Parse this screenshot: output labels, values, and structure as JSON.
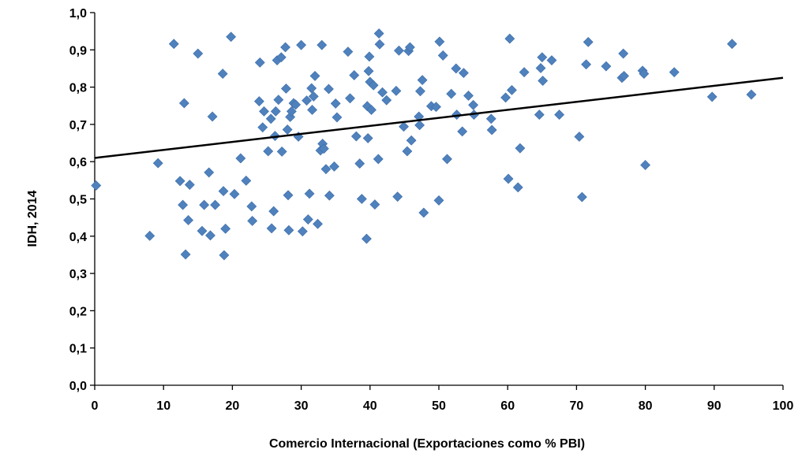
{
  "chart_data": {
    "type": "scatter",
    "xlabel": "Comercio Internacional (Exportaciones como % PBI)",
    "ylabel": "IDH, 2014",
    "xlim": [
      0,
      100
    ],
    "ylim": [
      0,
      1
    ],
    "xticks": [
      "0",
      "10",
      "20",
      "30",
      "40",
      "50",
      "60",
      "70",
      "80",
      "90",
      "100"
    ],
    "yticks": [
      "0,0",
      "0,1",
      "0,2",
      "0,3",
      "0,4",
      "0,5",
      "0,6",
      "0,7",
      "0,8",
      "0,9",
      "1,0"
    ],
    "grid": false,
    "marker_color": "#4F81BD",
    "trendline": {
      "type": "linear",
      "x": [
        0,
        100
      ],
      "y": [
        0.61,
        0.825
      ],
      "color": "#000000"
    },
    "points": [
      [
        0.2,
        0.536
      ],
      [
        8.0,
        0.401
      ],
      [
        9.2,
        0.596
      ],
      [
        11.5,
        0.916
      ],
      [
        12.4,
        0.548
      ],
      [
        12.8,
        0.484
      ],
      [
        13.0,
        0.757
      ],
      [
        13.2,
        0.351
      ],
      [
        13.6,
        0.443
      ],
      [
        13.8,
        0.538
      ],
      [
        15.0,
        0.89
      ],
      [
        15.6,
        0.414
      ],
      [
        15.9,
        0.484
      ],
      [
        16.6,
        0.571
      ],
      [
        16.8,
        0.402
      ],
      [
        17.1,
        0.721
      ],
      [
        17.5,
        0.484
      ],
      [
        18.6,
        0.836
      ],
      [
        18.7,
        0.521
      ],
      [
        18.8,
        0.349
      ],
      [
        19.0,
        0.42
      ],
      [
        19.8,
        0.935
      ],
      [
        20.3,
        0.513
      ],
      [
        21.2,
        0.609
      ],
      [
        22.0,
        0.549
      ],
      [
        22.8,
        0.48
      ],
      [
        22.9,
        0.441
      ],
      [
        23.9,
        0.762
      ],
      [
        24.0,
        0.866
      ],
      [
        24.4,
        0.692
      ],
      [
        24.6,
        0.735
      ],
      [
        25.2,
        0.628
      ],
      [
        25.6,
        0.715
      ],
      [
        25.7,
        0.421
      ],
      [
        26.0,
        0.467
      ],
      [
        26.2,
        0.669
      ],
      [
        26.3,
        0.735
      ],
      [
        26.5,
        0.872
      ],
      [
        26.7,
        0.766
      ],
      [
        27.1,
        0.88
      ],
      [
        27.2,
        0.627
      ],
      [
        27.7,
        0.907
      ],
      [
        27.8,
        0.796
      ],
      [
        28.0,
        0.686
      ],
      [
        28.1,
        0.51
      ],
      [
        28.2,
        0.416
      ],
      [
        28.4,
        0.72
      ],
      [
        28.6,
        0.735
      ],
      [
        28.9,
        0.757
      ],
      [
        29.2,
        0.753
      ],
      [
        29.6,
        0.667
      ],
      [
        30.0,
        0.913
      ],
      [
        30.2,
        0.413
      ],
      [
        30.8,
        0.764
      ],
      [
        31.0,
        0.445
      ],
      [
        31.2,
        0.514
      ],
      [
        31.5,
        0.797
      ],
      [
        31.6,
        0.739
      ],
      [
        31.8,
        0.775
      ],
      [
        32.0,
        0.83
      ],
      [
        32.4,
        0.433
      ],
      [
        32.8,
        0.63
      ],
      [
        33.0,
        0.913
      ],
      [
        33.1,
        0.648
      ],
      [
        33.3,
        0.635
      ],
      [
        33.6,
        0.58
      ],
      [
        34.0,
        0.795
      ],
      [
        34.1,
        0.509
      ],
      [
        34.8,
        0.587
      ],
      [
        35.0,
        0.756
      ],
      [
        35.2,
        0.719
      ],
      [
        36.8,
        0.895
      ],
      [
        37.1,
        0.77
      ],
      [
        37.7,
        0.832
      ],
      [
        38.0,
        0.668
      ],
      [
        38.5,
        0.595
      ],
      [
        38.8,
        0.5
      ],
      [
        39.5,
        0.393
      ],
      [
        39.6,
        0.749
      ],
      [
        39.7,
        0.663
      ],
      [
        39.8,
        0.843
      ],
      [
        39.9,
        0.882
      ],
      [
        40.0,
        0.814
      ],
      [
        40.2,
        0.739
      ],
      [
        40.5,
        0.805
      ],
      [
        40.7,
        0.485
      ],
      [
        41.2,
        0.607
      ],
      [
        41.3,
        0.944
      ],
      [
        41.4,
        0.915
      ],
      [
        41.8,
        0.786
      ],
      [
        42.4,
        0.765
      ],
      [
        43.8,
        0.79
      ],
      [
        44.0,
        0.506
      ],
      [
        44.2,
        0.898
      ],
      [
        44.9,
        0.694
      ],
      [
        45.4,
        0.628
      ],
      [
        45.6,
        0.897
      ],
      [
        45.8,
        0.907
      ],
      [
        46.0,
        0.657
      ],
      [
        47.1,
        0.721
      ],
      [
        47.2,
        0.698
      ],
      [
        47.3,
        0.789
      ],
      [
        47.6,
        0.819
      ],
      [
        47.8,
        0.463
      ],
      [
        48.9,
        0.749
      ],
      [
        49.6,
        0.747
      ],
      [
        50.0,
        0.496
      ],
      [
        50.1,
        0.922
      ],
      [
        50.6,
        0.885
      ],
      [
        51.2,
        0.607
      ],
      [
        51.8,
        0.782
      ],
      [
        52.5,
        0.85
      ],
      [
        52.6,
        0.726
      ],
      [
        53.4,
        0.681
      ],
      [
        53.6,
        0.838
      ],
      [
        54.3,
        0.777
      ],
      [
        55.0,
        0.752
      ],
      [
        55.1,
        0.726
      ],
      [
        57.6,
        0.715
      ],
      [
        57.7,
        0.685
      ],
      [
        59.7,
        0.772
      ],
      [
        60.1,
        0.554
      ],
      [
        60.3,
        0.93
      ],
      [
        60.6,
        0.792
      ],
      [
        61.5,
        0.531
      ],
      [
        61.8,
        0.636
      ],
      [
        62.4,
        0.84
      ],
      [
        64.6,
        0.726
      ],
      [
        64.8,
        0.851
      ],
      [
        65.0,
        0.88
      ],
      [
        65.1,
        0.817
      ],
      [
        66.4,
        0.872
      ],
      [
        67.5,
        0.726
      ],
      [
        70.4,
        0.667
      ],
      [
        70.8,
        0.505
      ],
      [
        71.4,
        0.861
      ],
      [
        71.7,
        0.921
      ],
      [
        74.3,
        0.856
      ],
      [
        76.6,
        0.825
      ],
      [
        76.8,
        0.89
      ],
      [
        76.9,
        0.83
      ],
      [
        79.6,
        0.844
      ],
      [
        79.8,
        0.836
      ],
      [
        80.0,
        0.591
      ],
      [
        84.2,
        0.84
      ],
      [
        89.7,
        0.774
      ],
      [
        92.6,
        0.916
      ],
      [
        95.4,
        0.78
      ]
    ]
  }
}
